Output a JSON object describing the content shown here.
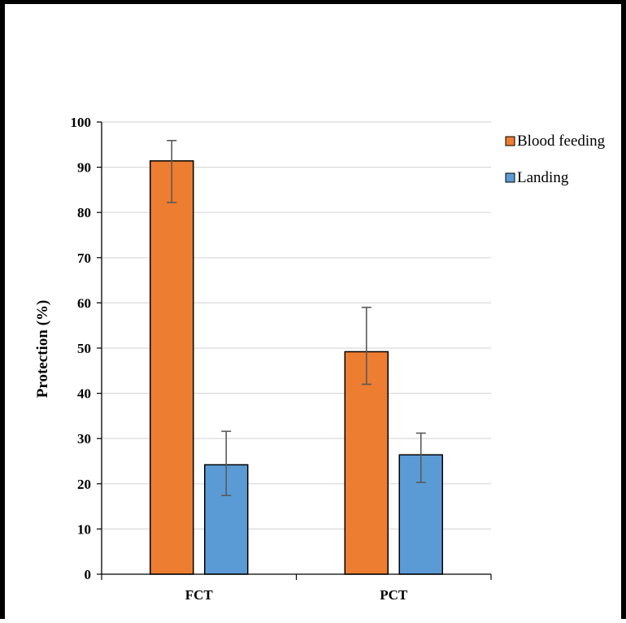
{
  "chart_data": {
    "type": "bar",
    "title": "",
    "xlabel": "",
    "ylabel": "Protection (%)",
    "ylim": [
      0,
      100
    ],
    "yticks": [
      0,
      10,
      20,
      30,
      40,
      50,
      60,
      70,
      80,
      90,
      100
    ],
    "categories": [
      "FCT",
      "PCT"
    ],
    "grid": "horizontal",
    "legend_position": "top-right",
    "series": [
      {
        "name": "Blood feeding",
        "color": "#ED7D31",
        "values": [
          91.4,
          49.2
        ],
        "error_low": [
          82.2,
          42.0
        ],
        "error_high": [
          95.9,
          59.0
        ]
      },
      {
        "name": "Landing",
        "color": "#5B9BD5",
        "values": [
          24.2,
          26.4
        ],
        "error_low": [
          17.4,
          20.3
        ],
        "error_high": [
          31.6,
          31.2
        ]
      }
    ]
  }
}
